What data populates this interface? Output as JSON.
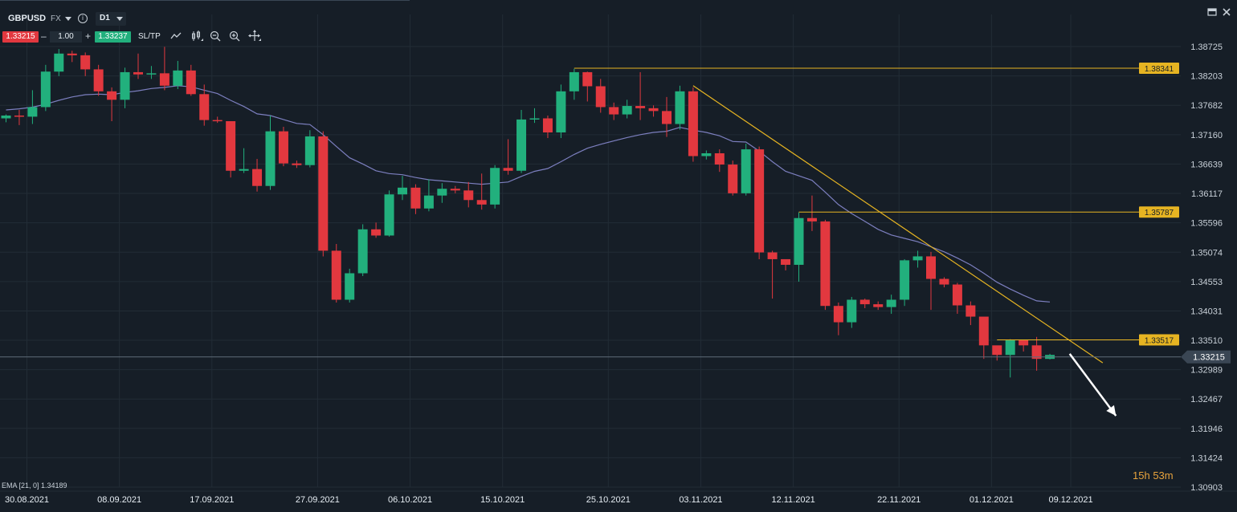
{
  "toolbar": {
    "symbol": "GBPUSD",
    "market": "FX",
    "timeframe": "D1",
    "sell_price": "1.33215",
    "quantity": "1.00",
    "buy_price": "1.33237",
    "sltp_label": "SL/TP",
    "minus": "–",
    "plus": "+",
    "info": "i"
  },
  "indicator": {
    "label": "EMA [21, 0] 1.34189"
  },
  "countdown": {
    "hours": "15h",
    "minutes": "53m"
  },
  "colors": {
    "background": "#161e27",
    "grid": "#222c36",
    "bull": "#22b07d",
    "bear": "#e2383f",
    "ema": "#7c7fbf",
    "level": "#e6b422",
    "price_line": "#5f6b78",
    "price_tag": "#3a4654",
    "arrow": "#ffffff"
  },
  "icons": [
    "line-chart-icon",
    "candles-icon",
    "zoom-out-icon",
    "zoom-in-icon",
    "crosshair-icon",
    "minimize-icon",
    "close-icon"
  ],
  "chart_data": {
    "type": "candlestick",
    "symbol": "GBPUSD",
    "timeframe": "D1",
    "y_ticks": [
      "1.38725",
      "1.38203",
      "1.37682",
      "1.37160",
      "1.36639",
      "1.36117",
      "1.35596",
      "1.35074",
      "1.34553",
      "1.34031",
      "1.33510",
      "1.32989",
      "1.32467",
      "1.31946",
      "1.31424",
      "1.30903"
    ],
    "ylim": [
      1.30903,
      1.38725
    ],
    "x_ticks": [
      {
        "label": "30.08.2021",
        "index": 0
      },
      {
        "label": "08.09.2021",
        "index": 7
      },
      {
        "label": "17.09.2021",
        "index": 14
      },
      {
        "label": "27.09.2021",
        "index": 22
      },
      {
        "label": "06.10.2021",
        "index": 29
      },
      {
        "label": "15.10.2021",
        "index": 36
      },
      {
        "label": "25.10.2021",
        "index": 44
      },
      {
        "label": "03.11.2021",
        "index": 51
      },
      {
        "label": "12.11.2021",
        "index": 58
      },
      {
        "label": "22.11.2021",
        "index": 66
      },
      {
        "label": "01.12.2021",
        "index": 73
      },
      {
        "label": "09.12.2021",
        "index": 79
      }
    ],
    "candles": [
      [
        1.3745,
        1.3752,
        1.3738,
        1.375
      ],
      [
        1.375,
        1.376,
        1.3733,
        1.3748
      ],
      [
        1.3748,
        1.3795,
        1.3735,
        1.3765
      ],
      [
        1.3765,
        1.384,
        1.3758,
        1.3828
      ],
      [
        1.3828,
        1.3868,
        1.382,
        1.386
      ],
      [
        1.386,
        1.3865,
        1.3845,
        1.3857
      ],
      [
        1.3857,
        1.3862,
        1.382,
        1.3832
      ],
      [
        1.3832,
        1.384,
        1.3785,
        1.3793
      ],
      [
        1.3793,
        1.38,
        1.374,
        1.3778
      ],
      [
        1.3778,
        1.3835,
        1.3763,
        1.3827
      ],
      [
        1.3827,
        1.386,
        1.3815,
        1.3823
      ],
      [
        1.3823,
        1.3838,
        1.3815,
        1.3825
      ],
      [
        1.3825,
        1.3872,
        1.3795,
        1.3803
      ],
      [
        1.3803,
        1.3847,
        1.3797,
        1.383
      ],
      [
        1.383,
        1.384,
        1.3785,
        1.3788
      ],
      [
        1.3788,
        1.3805,
        1.3732,
        1.3742
      ],
      [
        1.3742,
        1.3748,
        1.3737,
        1.374
      ],
      [
        1.374,
        1.3735,
        1.364,
        1.3652
      ],
      [
        1.3652,
        1.3692,
        1.3648,
        1.3655
      ],
      [
        1.3655,
        1.3673,
        1.3615,
        1.3625
      ],
      [
        1.3625,
        1.375,
        1.3618,
        1.3722
      ],
      [
        1.3722,
        1.373,
        1.366,
        1.3665
      ],
      [
        1.3665,
        1.367,
        1.3657,
        1.3662
      ],
      [
        1.3662,
        1.3724,
        1.3658,
        1.3713
      ],
      [
        1.3713,
        1.3722,
        1.35,
        1.351
      ],
      [
        1.351,
        1.3522,
        1.3418,
        1.3423
      ],
      [
        1.3423,
        1.3478,
        1.3418,
        1.347
      ],
      [
        1.347,
        1.3557,
        1.3465,
        1.3548
      ],
      [
        1.3548,
        1.356,
        1.3533,
        1.3537
      ],
      [
        1.3537,
        1.3617,
        1.3535,
        1.361
      ],
      [
        1.361,
        1.3643,
        1.36,
        1.3622
      ],
      [
        1.3622,
        1.3628,
        1.3575,
        1.3585
      ],
      [
        1.3585,
        1.3637,
        1.358,
        1.3608
      ],
      [
        1.3608,
        1.363,
        1.3595,
        1.362
      ],
      [
        1.362,
        1.3625,
        1.3612,
        1.3617
      ],
      [
        1.3617,
        1.3632,
        1.3587,
        1.36
      ],
      [
        1.36,
        1.3647,
        1.3583,
        1.3592
      ],
      [
        1.3592,
        1.3662,
        1.3585,
        1.3657
      ],
      [
        1.3657,
        1.3708,
        1.3645,
        1.3652
      ],
      [
        1.3652,
        1.376,
        1.3648,
        1.3743
      ],
      [
        1.3743,
        1.3763,
        1.3737,
        1.3745
      ],
      [
        1.3745,
        1.375,
        1.371,
        1.372
      ],
      [
        1.372,
        1.3805,
        1.371,
        1.3793
      ],
      [
        1.3793,
        1.3833,
        1.3778,
        1.3827
      ],
      [
        1.3827,
        1.3828,
        1.3775,
        1.3802
      ],
      [
        1.3802,
        1.3815,
        1.3755,
        1.3765
      ],
      [
        1.3765,
        1.3773,
        1.3742,
        1.3752
      ],
      [
        1.3752,
        1.3778,
        1.3745,
        1.3767
      ],
      [
        1.3767,
        1.3827,
        1.3742,
        1.3763
      ],
      [
        1.3763,
        1.3768,
        1.3748,
        1.3758
      ],
      [
        1.3758,
        1.3783,
        1.3712,
        1.3735
      ],
      [
        1.3735,
        1.3803,
        1.3725,
        1.3793
      ],
      [
        1.3793,
        1.38,
        1.3668,
        1.3678
      ],
      [
        1.3678,
        1.3688,
        1.3672,
        1.3683
      ],
      [
        1.3683,
        1.369,
        1.365,
        1.3663
      ],
      [
        1.3663,
        1.367,
        1.3608,
        1.3612
      ],
      [
        1.3612,
        1.37,
        1.3608,
        1.369
      ],
      [
        1.369,
        1.3695,
        1.3495,
        1.3507
      ],
      [
        1.3507,
        1.351,
        1.3425,
        1.3495
      ],
      [
        1.3495,
        1.349,
        1.3475,
        1.3485
      ],
      [
        1.3485,
        1.3578,
        1.3455,
        1.3568
      ],
      [
        1.3568,
        1.3608,
        1.3545,
        1.3562
      ],
      [
        1.3562,
        1.3565,
        1.3405,
        1.3412
      ],
      [
        1.3412,
        1.3418,
        1.336,
        1.3383
      ],
      [
        1.3383,
        1.3428,
        1.3373,
        1.3423
      ],
      [
        1.3423,
        1.3425,
        1.3408,
        1.3415
      ],
      [
        1.3415,
        1.342,
        1.3405,
        1.341
      ],
      [
        1.341,
        1.3432,
        1.3398,
        1.3423
      ],
      [
        1.3423,
        1.3495,
        1.3412,
        1.3493
      ],
      [
        1.3493,
        1.351,
        1.348,
        1.35
      ],
      [
        1.35,
        1.3508,
        1.3405,
        1.346
      ],
      [
        1.346,
        1.3463,
        1.3445,
        1.345
      ],
      [
        1.345,
        1.3453,
        1.3398,
        1.3413
      ],
      [
        1.3413,
        1.342,
        1.3378,
        1.3393
      ],
      [
        1.3393,
        1.3388,
        1.3318,
        1.3342
      ],
      [
        1.3342,
        1.3335,
        1.3315,
        1.3325
      ],
      [
        1.3325,
        1.3353,
        1.3285,
        1.3351
      ],
      [
        1.3351,
        1.3348,
        1.3331,
        1.3342
      ],
      [
        1.3342,
        1.3357,
        1.3297,
        1.3318
      ],
      [
        1.3318,
        1.3327,
        1.3317,
        1.3325
      ]
    ],
    "ema": {
      "name": "EMA [21, 0]",
      "value": 1.34189,
      "values": [
        1.376,
        1.3762,
        1.3765,
        1.377,
        1.3777,
        1.3783,
        1.3787,
        1.3788,
        1.3787,
        1.3791,
        1.3794,
        1.3798,
        1.38,
        1.3803,
        1.3801,
        1.3795,
        1.3789,
        1.3777,
        1.3766,
        1.3753,
        1.375,
        1.3743,
        1.3736,
        1.3734,
        1.3716,
        1.3695,
        1.3675,
        1.3664,
        1.3652,
        1.3647,
        1.3645,
        1.364,
        1.3636,
        1.3634,
        1.3632,
        1.363,
        1.3628,
        1.363,
        1.3632,
        1.3642,
        1.3651,
        1.3656,
        1.3668,
        1.3681,
        1.3692,
        1.3699,
        1.3705,
        1.3711,
        1.3716,
        1.372,
        1.3722,
        1.3729,
        1.3724,
        1.372,
        1.3714,
        1.3704,
        1.3703,
        1.3687,
        1.3668,
        1.3651,
        1.3643,
        1.3635,
        1.3614,
        1.3592,
        1.3576,
        1.3562,
        1.3548,
        1.3538,
        1.3532,
        1.3526,
        1.3517,
        1.3508,
        1.3497,
        1.3485,
        1.347,
        1.3454,
        1.3442,
        1.3431,
        1.3421,
        1.3419
      ]
    },
    "levels": [
      {
        "value": 1.38341,
        "label": "1.38341",
        "from_index": 43
      },
      {
        "value": 1.35787,
        "label": "1.35787",
        "from_index": 60
      },
      {
        "value": 1.33517,
        "label": "1.33517",
        "from_index": 75
      }
    ],
    "trendline": {
      "from_index": 52,
      "from_value": 1.3803,
      "to_index": 83,
      "to_value": 1.3311
    },
    "arrow": {
      "from_index": 80.5,
      "from_value": 1.3327,
      "to_index": 84,
      "to_value": 1.3217
    },
    "current_price": {
      "value": 1.33215,
      "label": "1.33215"
    },
    "grid": true
  }
}
